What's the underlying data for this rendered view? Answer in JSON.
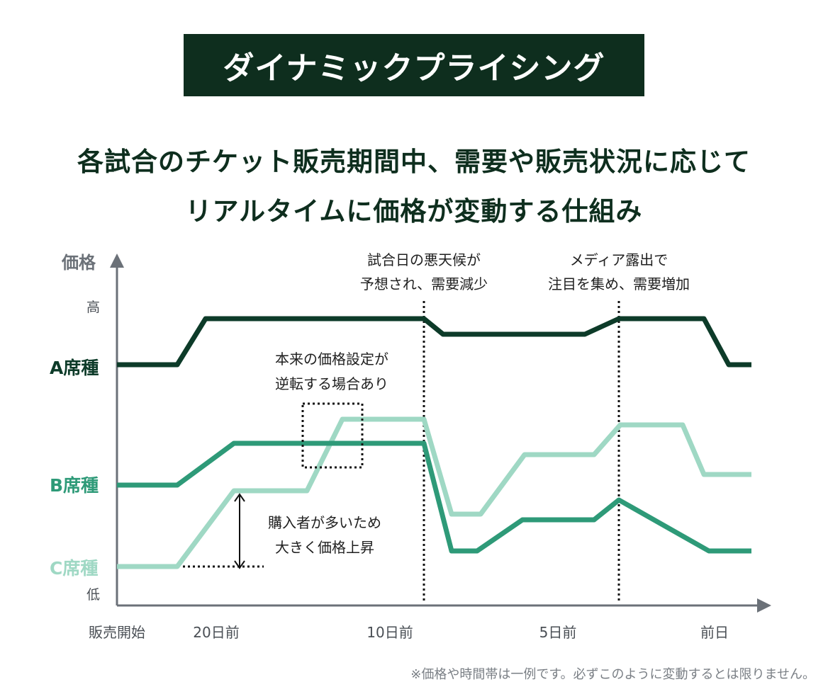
{
  "title": "ダイナミックプライシング",
  "subtitle_line1": "各試合のチケット販売期間中、需要や販売状況に応じて",
  "subtitle_line2": "リアルタイムに価格が変動する仕組み",
  "footnote": "※価格や時間帯は一例です。必ずこのように変動するとは限りません。",
  "colors": {
    "banner": "#0e2e1e",
    "seat_a": "#0d3b29",
    "seat_b": "#2e9a78",
    "seat_c": "#9fd8c4",
    "axis": "#6b7178"
  },
  "chart": {
    "y_axis_label": "価格",
    "y_high": "高",
    "y_low": "低",
    "x_ticks": [
      "販売開始",
      "20日前",
      "10日前",
      "5日前",
      "前日"
    ],
    "series": [
      {
        "name": "A席種"
      },
      {
        "name": "B席種"
      },
      {
        "name": "C席種"
      }
    ],
    "annotations": {
      "bad_weather_1": "試合日の悪天候が",
      "bad_weather_2": "予想され、需要減少",
      "media_1": "メディア露出で",
      "media_2": "注目を集め、需要増加",
      "reverse_1": "本来の価格設定が",
      "reverse_2": "逆転する場合あり",
      "rise_1": "購入者が多いため",
      "rise_2": "大きく価格上昇"
    }
  }
}
